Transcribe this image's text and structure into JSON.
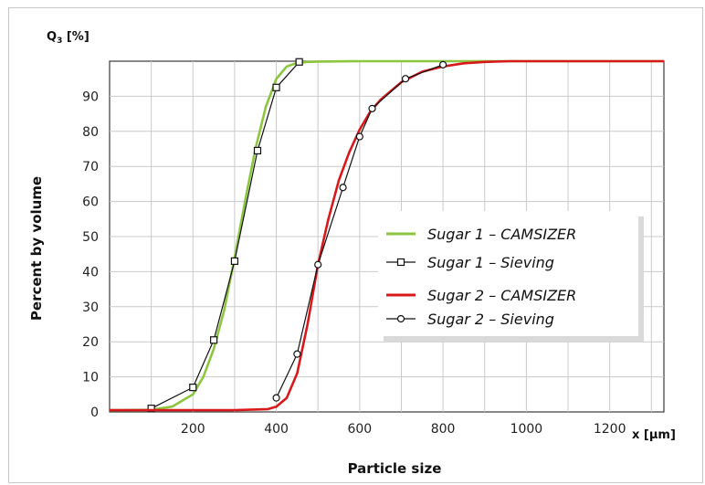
{
  "chart_data": {
    "type": "line",
    "title": "",
    "xlabel": "Particle size",
    "ylabel": "Percent by volume",
    "x_unit_label": "x [µm]",
    "y_unit_label": "Q3 [%]",
    "y_unit_main": "Q",
    "y_unit_sub": "3",
    "y_unit_rest": " [%]",
    "xlim": [
      0,
      1330
    ],
    "ylim": [
      0,
      100
    ],
    "xticks": [
      200,
      400,
      600,
      800,
      1000,
      1200
    ],
    "yticks": [
      0,
      10,
      20,
      30,
      40,
      50,
      60,
      70,
      80,
      90
    ],
    "grid": true,
    "legend_position": "center-right",
    "series": [
      {
        "name": "Sugar 1 – CAMSIZER",
        "color": "#8cc63f",
        "marker": "none",
        "x": [
          0,
          100,
          150,
          200,
          225,
          250,
          275,
          300,
          325,
          350,
          375,
          400,
          425,
          450,
          475,
          500,
          600,
          800,
          1000,
          1330
        ],
        "y": [
          0.5,
          0.6,
          1.5,
          5,
          10,
          18,
          29,
          44,
          60,
          75,
          87,
          95,
          98.5,
          99.5,
          99.8,
          99.9,
          100,
          100,
          100,
          100
        ]
      },
      {
        "name": "Sugar 1 – Sieving",
        "color": "#111111",
        "marker": "square",
        "x": [
          100,
          200,
          250,
          300,
          355,
          400,
          455
        ],
        "y": [
          1,
          7,
          20.5,
          43,
          74.5,
          92.5,
          99.8
        ]
      },
      {
        "name": "Sugar 2 – CAMSIZER",
        "color": "#d7191c",
        "marker": "none",
        "x": [
          0,
          300,
          380,
          400,
          425,
          450,
          475,
          500,
          525,
          550,
          575,
          600,
          625,
          650,
          700,
          750,
          800,
          850,
          900,
          960,
          1330
        ],
        "y": [
          0.5,
          0.5,
          0.8,
          1.5,
          4,
          11,
          25,
          42,
          55,
          66,
          74,
          80.5,
          85.5,
          89,
          94,
          97,
          98.5,
          99.4,
          99.8,
          100,
          100
        ]
      },
      {
        "name": "Sugar 2 – Sieving",
        "color": "#111111",
        "marker": "circle",
        "x": [
          400,
          450,
          500,
          560,
          600,
          630,
          710,
          800
        ],
        "y": [
          4,
          16.5,
          42,
          64,
          78.5,
          86.5,
          95,
          99
        ]
      }
    ]
  }
}
